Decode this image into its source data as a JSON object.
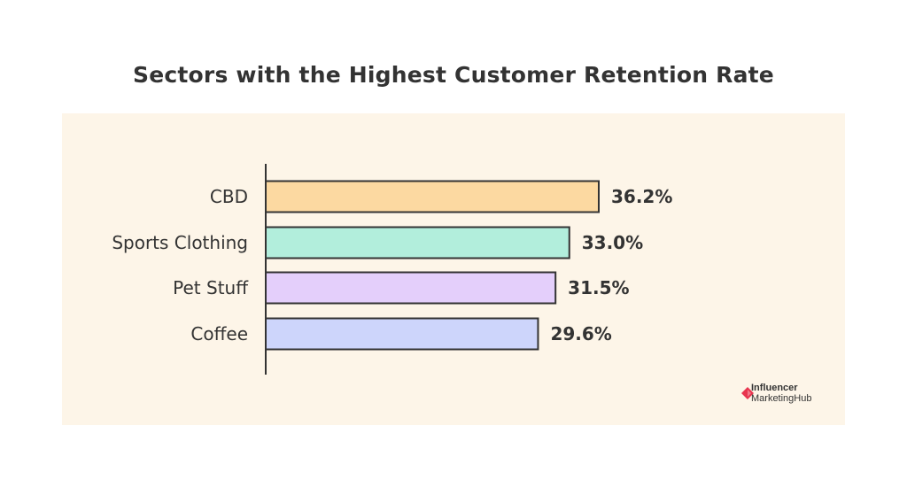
{
  "chart_data": {
    "type": "bar",
    "orientation": "horizontal",
    "title": "Sectors with the Highest Customer Retention Rate",
    "categories": [
      "CBD",
      "Sports Clothing",
      "Pet Stuff",
      "Coffee"
    ],
    "values": [
      36.2,
      33.0,
      31.5,
      29.6
    ],
    "value_labels": [
      "36.2%",
      "33.0%",
      "31.5%",
      "29.6%"
    ],
    "colors": [
      "#fcd9a1",
      "#b2eedc",
      "#e4cffb",
      "#cdd5fb"
    ],
    "xlim": [
      0,
      40
    ],
    "grid": false,
    "legend": "none"
  },
  "branding": {
    "line1": "Influencer",
    "line2": "MarketingHub",
    "accent": "#e8354f"
  },
  "theme": {
    "panel_bg": "#fdf5e8",
    "bar_border": "#333333",
    "text": "#333333"
  }
}
